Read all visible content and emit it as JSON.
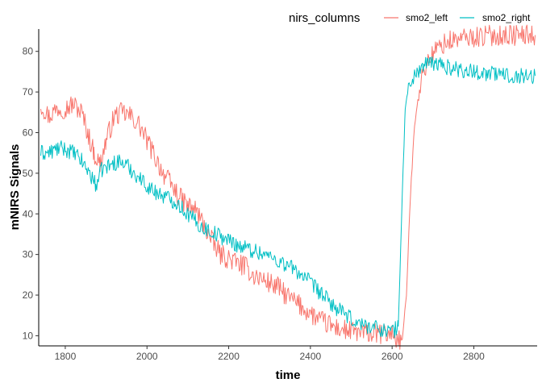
{
  "chart_data": {
    "type": "line",
    "xlabel": "time",
    "ylabel": "mNIRS Signals",
    "xlim": [
      1735,
      2955
    ],
    "ylim": [
      7.5,
      85.5
    ],
    "x_ticks": [
      1800,
      2000,
      2200,
      2400,
      2600,
      2800
    ],
    "y_ticks": [
      10,
      20,
      30,
      40,
      50,
      60,
      70,
      80
    ],
    "grid": false,
    "legend": {
      "title": "nirs_columns",
      "position": "top-right",
      "direction": "horizontal"
    },
    "series": [
      {
        "name": "smo2_left",
        "color": "#F8766D",
        "noise": 2.6,
        "points": [
          [
            1740,
            67
          ],
          [
            1760,
            64
          ],
          [
            1780,
            66
          ],
          [
            1800,
            66
          ],
          [
            1820,
            67
          ],
          [
            1840,
            65
          ],
          [
            1855,
            60
          ],
          [
            1870,
            55
          ],
          [
            1885,
            52
          ],
          [
            1900,
            58
          ],
          [
            1920,
            64
          ],
          [
            1940,
            65
          ],
          [
            1960,
            64
          ],
          [
            1980,
            62
          ],
          [
            2000,
            58
          ],
          [
            2020,
            54
          ],
          [
            2040,
            50
          ],
          [
            2060,
            47
          ],
          [
            2080,
            44
          ],
          [
            2100,
            42
          ],
          [
            2120,
            41
          ],
          [
            2140,
            37
          ],
          [
            2160,
            33
          ],
          [
            2180,
            30
          ],
          [
            2200,
            29
          ],
          [
            2220,
            28
          ],
          [
            2240,
            27
          ],
          [
            2260,
            25
          ],
          [
            2280,
            24
          ],
          [
            2300,
            23
          ],
          [
            2320,
            22
          ],
          [
            2340,
            20
          ],
          [
            2360,
            18.5
          ],
          [
            2380,
            17
          ],
          [
            2400,
            15.5
          ],
          [
            2420,
            14
          ],
          [
            2440,
            13
          ],
          [
            2460,
            12
          ],
          [
            2480,
            11.5
          ],
          [
            2500,
            11
          ],
          [
            2520,
            10.8
          ],
          [
            2540,
            10.5
          ],
          [
            2560,
            10.5
          ],
          [
            2580,
            10.5
          ],
          [
            2600,
            10.5
          ],
          [
            2615,
            9
          ],
          [
            2625,
            9
          ],
          [
            2635,
            20
          ],
          [
            2645,
            45
          ],
          [
            2655,
            62
          ],
          [
            2665,
            70
          ],
          [
            2680,
            76
          ],
          [
            2700,
            79.5
          ],
          [
            2720,
            81.5
          ],
          [
            2740,
            82.5
          ],
          [
            2760,
            83
          ],
          [
            2800,
            83.5
          ],
          [
            2850,
            84
          ],
          [
            2900,
            84
          ],
          [
            2950,
            84
          ]
        ]
      },
      {
        "name": "smo2_right",
        "color": "#00BFC4",
        "noise": 2.0,
        "points": [
          [
            1740,
            55
          ],
          [
            1760,
            55
          ],
          [
            1780,
            56
          ],
          [
            1800,
            56
          ],
          [
            1820,
            55
          ],
          [
            1840,
            53
          ],
          [
            1860,
            50
          ],
          [
            1875,
            47
          ],
          [
            1890,
            51
          ],
          [
            1910,
            52
          ],
          [
            1930,
            53
          ],
          [
            1950,
            52
          ],
          [
            1970,
            50
          ],
          [
            1990,
            48
          ],
          [
            2010,
            46
          ],
          [
            2030,
            45
          ],
          [
            2050,
            44
          ],
          [
            2070,
            43
          ],
          [
            2090,
            41
          ],
          [
            2110,
            39
          ],
          [
            2130,
            37
          ],
          [
            2150,
            36
          ],
          [
            2170,
            35
          ],
          [
            2200,
            33.5
          ],
          [
            2230,
            32
          ],
          [
            2260,
            31
          ],
          [
            2290,
            30
          ],
          [
            2320,
            28.5
          ],
          [
            2350,
            27
          ],
          [
            2380,
            25
          ],
          [
            2400,
            23
          ],
          [
            2420,
            21
          ],
          [
            2440,
            19
          ],
          [
            2460,
            17
          ],
          [
            2480,
            15.5
          ],
          [
            2500,
            14
          ],
          [
            2520,
            13
          ],
          [
            2540,
            12.5
          ],
          [
            2560,
            12
          ],
          [
            2580,
            11.5
          ],
          [
            2600,
            11.2
          ],
          [
            2615,
            12
          ],
          [
            2625,
            45
          ],
          [
            2632,
            66
          ],
          [
            2640,
            71
          ],
          [
            2655,
            74
          ],
          [
            2670,
            76
          ],
          [
            2690,
            77
          ],
          [
            2710,
            77
          ],
          [
            2740,
            76
          ],
          [
            2770,
            75.5
          ],
          [
            2800,
            75
          ],
          [
            2850,
            74.5
          ],
          [
            2900,
            74
          ],
          [
            2950,
            74
          ]
        ]
      }
    ]
  }
}
